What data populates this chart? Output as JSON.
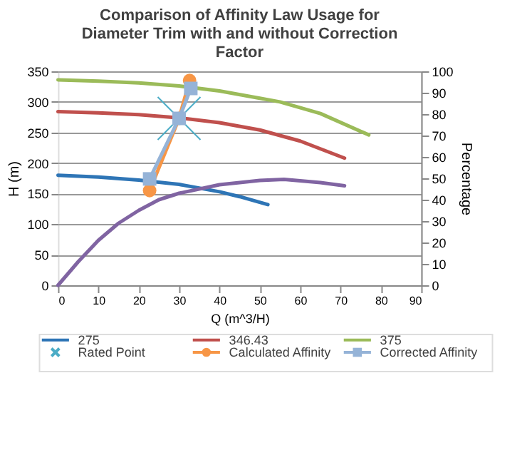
{
  "chart_data": {
    "type": "line",
    "title": "Comparison of Affinity Law Usage for Diameter Trim with and without Correction Factor",
    "xlabel": "Q (m^3/H)",
    "ylabel": "H (m)",
    "y2label": "Percentage",
    "xlim": [
      0,
      90
    ],
    "xticks": [
      0,
      10,
      20,
      30,
      40,
      50,
      60,
      70,
      80,
      90
    ],
    "ylim": [
      0,
      350
    ],
    "yticks": [
      0,
      50,
      100,
      150,
      200,
      250,
      300,
      350
    ],
    "y2lim": [
      0,
      100
    ],
    "y2ticks": [
      0,
      10,
      20,
      30,
      40,
      50,
      60,
      70,
      80,
      90,
      100
    ],
    "grid": "y",
    "legend": "bottom",
    "series": [
      {
        "name": "275",
        "marker": "none",
        "color": "#2e75b6",
        "x": [
          0,
          10,
          20,
          30,
          40,
          45,
          52
        ],
        "values": [
          180,
          177,
          172,
          165,
          153,
          145,
          132
        ]
      },
      {
        "name": "346.43",
        "marker": "none",
        "color": "#c0504d",
        "x": [
          0,
          10,
          20,
          30,
          40,
          50,
          60,
          71
        ],
        "values": [
          284,
          282,
          279,
          274,
          266,
          254,
          236,
          208
        ]
      },
      {
        "name": "375",
        "marker": "none",
        "color": "#9bbb59",
        "x": [
          0,
          10,
          20,
          30,
          40,
          50,
          55,
          65,
          77
        ],
        "values": [
          336,
          334,
          331,
          326,
          318,
          306,
          300,
          281,
          246
        ]
      },
      {
        "name": "Rated Point",
        "type": "scatter",
        "marker": "cross",
        "color": "#4bacc6",
        "x": [
          30
        ],
        "values": [
          273
        ]
      },
      {
        "name": "Calculated Affinity",
        "marker": "circle",
        "color": "#f79646",
        "x": [
          22.7,
          30,
          32.6
        ],
        "values": [
          155,
          273,
          335
        ]
      },
      {
        "name": "Corrected Affinity",
        "marker": "square",
        "color": "#95b3d7",
        "x": [
          22.7,
          30,
          32.9
        ],
        "values": [
          174,
          273,
          322
        ]
      },
      {
        "marker": "none",
        "axis": "y2",
        "color": "#8064a2",
        "x": [
          0,
          5,
          10,
          15,
          20,
          25,
          30,
          40,
          50,
          56,
          65,
          71
        ],
        "values": [
          0,
          11,
          21,
          29,
          35,
          40,
          43,
          47,
          49,
          49.5,
          48,
          46.5
        ]
      }
    ]
  }
}
